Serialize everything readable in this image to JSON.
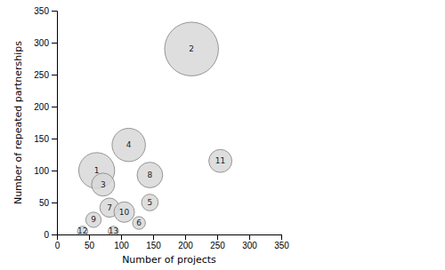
{
  "chart_data": {
    "type": "bubble",
    "x": [
      62,
      210,
      72,
      112,
      145,
      128,
      82,
      145,
      57,
      105,
      255,
      40,
      88
    ],
    "values": [
      100,
      290,
      78,
      140,
      50,
      18,
      42,
      93,
      23,
      35,
      115,
      5,
      5
    ],
    "sizes": [
      28,
      42,
      18,
      26,
      13,
      10,
      15,
      20,
      12,
      16,
      18,
      8,
      8
    ],
    "labels": [
      "1",
      "2",
      "3",
      "4",
      "5",
      "6",
      "7",
      "8",
      "9",
      "10",
      "11",
      "12",
      "13"
    ],
    "xlabel": "Number of projects",
    "ylabel": "Number of repeated partnerships",
    "xlim": [
      0,
      350
    ],
    "ylim": [
      0,
      350
    ],
    "xticks": [
      0,
      50,
      100,
      150,
      200,
      250,
      300,
      350
    ],
    "yticks": [
      0,
      50,
      100,
      150,
      200,
      250,
      300,
      350
    ],
    "color": "#d8d8d8"
  }
}
